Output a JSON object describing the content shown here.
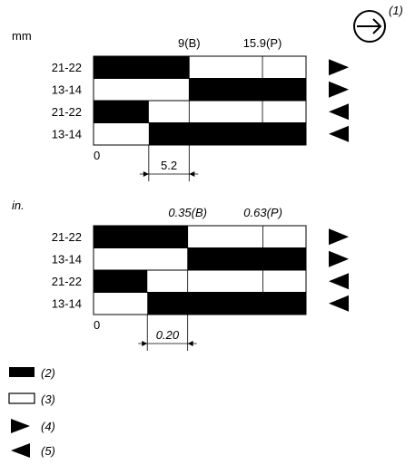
{
  "direction_symbol": {
    "icon": "arrow-right-in-circle-icon",
    "label": "(1)"
  },
  "panels": [
    {
      "unit": "mm",
      "italic": false,
      "markers": [
        {
          "label": "9(B)",
          "value": 9
        },
        {
          "label": "15.9(P)",
          "value": 15.9
        }
      ],
      "rows": [
        {
          "label": "21-22",
          "filled_from": 0,
          "filled_to": 9,
          "direction": "right"
        },
        {
          "label": "13-14",
          "filled_from": 9,
          "filled_to": 20,
          "direction": "right"
        },
        {
          "label": "21-22",
          "filled_from": 0,
          "filled_to": 5.2,
          "direction": "left"
        },
        {
          "label": "13-14",
          "filled_from": 5.2,
          "filled_to": 20,
          "direction": "left"
        }
      ],
      "origin_label": "0",
      "dimension": {
        "label": "5.2",
        "from": 5.2,
        "to": 9
      },
      "scale_max": 20
    },
    {
      "unit": "in.",
      "italic": true,
      "markers": [
        {
          "label": "0.35(B)",
          "value": 0.35
        },
        {
          "label": "0.63(P)",
          "value": 0.63
        }
      ],
      "rows": [
        {
          "label": "21-22",
          "filled_from": 0,
          "filled_to": 0.35,
          "direction": "right"
        },
        {
          "label": "13-14",
          "filled_from": 0.35,
          "filled_to": 0.79,
          "direction": "right"
        },
        {
          "label": "21-22",
          "filled_from": 0,
          "filled_to": 0.2,
          "direction": "left"
        },
        {
          "label": "13-14",
          "filled_from": 0.2,
          "filled_to": 0.79,
          "direction": "left"
        }
      ],
      "origin_label": "0",
      "dimension": {
        "label": "0.20",
        "from": 0.2,
        "to": 0.35
      },
      "scale_max": 0.79
    }
  ],
  "legend": [
    {
      "symbol": "filled-bar",
      "label": "(2)"
    },
    {
      "symbol": "open-bar",
      "label": "(3)"
    },
    {
      "symbol": "triangle-right-icon",
      "label": "(4)"
    },
    {
      "symbol": "triangle-left-icon",
      "label": "(5)"
    }
  ],
  "colors": {
    "ink": "#000000",
    "paper": "#ffffff"
  }
}
